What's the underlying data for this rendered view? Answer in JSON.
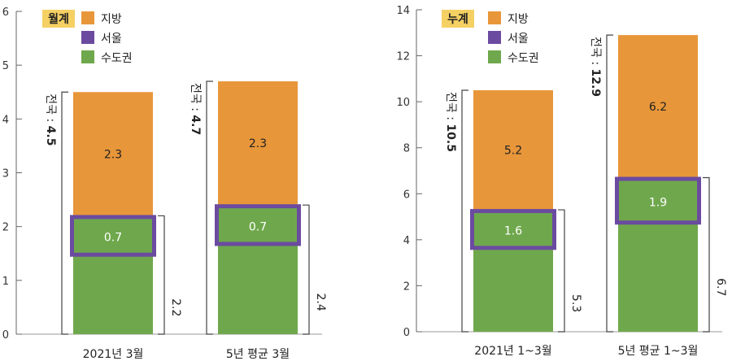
{
  "chart_data": [
    {
      "type": "bar",
      "badge": "월계",
      "categories": [
        "2021년 3월",
        "5년 평균 3월"
      ],
      "series": [
        {
          "name": "수도권",
          "values": [
            2.2,
            2.4
          ]
        },
        {
          "name": "지방",
          "values": [
            2.3,
            2.3
          ]
        }
      ],
      "seoul": {
        "name": "서울",
        "values": [
          0.7,
          0.7
        ]
      },
      "seg_labels": {
        "jibang": [
          "2.3",
          "2.3"
        ],
        "seoul": [
          "0.7",
          "0.7"
        ]
      },
      "totals": [
        {
          "prefix": "전국 : ",
          "value": "4.5",
          "num": 4.5
        },
        {
          "prefix": "전국 : ",
          "value": "4.7",
          "num": 4.7
        }
      ],
      "sub_labels": [
        "2.2",
        "2.4"
      ],
      "ylim": [
        0,
        6
      ],
      "yticks": [
        "0",
        "1",
        "2",
        "3",
        "4",
        "5",
        "6"
      ],
      "ytick_values": [
        0,
        1,
        2,
        3,
        4,
        5,
        6
      ]
    },
    {
      "type": "bar",
      "badge": "누계",
      "categories": [
        "2021년 1~3월",
        "5년 평균 1~3월"
      ],
      "series": [
        {
          "name": "수도권",
          "values": [
            5.3,
            6.7
          ]
        },
        {
          "name": "지방",
          "values": [
            5.2,
            6.2
          ]
        }
      ],
      "seoul": {
        "name": "서울",
        "values": [
          1.6,
          1.9
        ]
      },
      "seg_labels": {
        "jibang": [
          "5.2",
          "6.2"
        ],
        "seoul": [
          "1.6",
          "1.9"
        ]
      },
      "totals": [
        {
          "prefix": "전국 : ",
          "value": "10.5",
          "num": 10.5
        },
        {
          "prefix": "전국 : ",
          "value": "12.9",
          "num": 12.9
        }
      ],
      "sub_labels": [
        "5.3",
        "6.7"
      ],
      "ylim": [
        0,
        14
      ],
      "yticks": [
        "0",
        "2",
        "4",
        "6",
        "8",
        "10",
        "12",
        "14"
      ],
      "ytick_values": [
        0,
        2,
        4,
        6,
        8,
        10,
        12,
        14
      ]
    }
  ],
  "legend": [
    "지방",
    "서울",
    "수도권"
  ],
  "colors": {
    "jibang": "#E8963A",
    "sudogwon": "#6FA84C",
    "seoul": "#6B4BA0",
    "badge": "#F5D063",
    "axis": "#666666"
  }
}
